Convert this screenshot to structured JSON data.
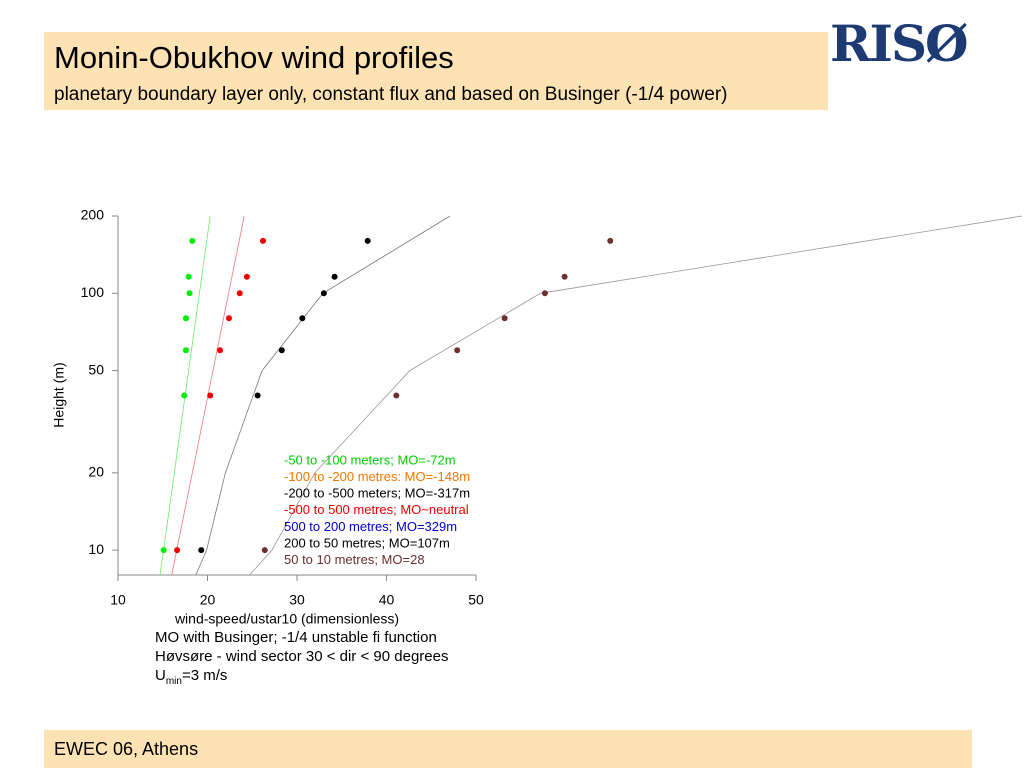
{
  "header": {
    "title": "Monin-Obukhov wind profiles",
    "subtitle": "planetary boundary layer only, constant flux and based on Businger (-1/4 power)",
    "logo": "RISØ"
  },
  "chart_data": {
    "type": "scatter",
    "xlabel": "wind-speed/ustar10  (dimensionless)",
    "ylabel": "Height (m)",
    "xlim": [
      10,
      50
    ],
    "xticks": [
      10,
      20,
      30,
      40,
      50
    ],
    "ylim": [
      8,
      200
    ],
    "yticks": [
      10,
      20,
      50,
      100,
      200
    ],
    "ylog": true,
    "heights": [
      160,
      116,
      100,
      80,
      60,
      40,
      10
    ],
    "series": [
      {
        "color": "#00ee00",
        "values": [
          18.3,
          17.9,
          18.0,
          17.6,
          17.6,
          17.4,
          15.1
        ]
      },
      {
        "color": "#ee0000",
        "values": [
          26.2,
          24.4,
          23.6,
          22.4,
          21.4,
          20.3,
          16.6
        ]
      },
      {
        "color": "#000000",
        "values": [
          37.9,
          34.2,
          33.0,
          30.6,
          28.3,
          25.6,
          19.3
        ]
      },
      {
        "color": "#6b3030",
        "values": [
          65.0,
          59.9,
          57.7,
          53.2,
          47.9,
          41.1,
          26.4
        ]
      }
    ],
    "fits": [
      {
        "color": "#66ee66",
        "heights": [
          8,
          200
        ],
        "values": [
          14.7,
          20.3
        ]
      },
      {
        "color": "#ee7777",
        "heights": [
          8,
          200
        ],
        "values": [
          16.0,
          24.1
        ]
      },
      {
        "color": "#777777",
        "heights": [
          8,
          10,
          20,
          50,
          100,
          200
        ],
        "values": [
          18.7,
          19.9,
          22.0,
          26.1,
          32.9,
          47.1
        ]
      },
      {
        "color": "#999999",
        "heights": [
          8,
          10,
          20,
          50,
          100,
          200
        ],
        "values": [
          24.7,
          27.2,
          32.0,
          42.6,
          57.2,
          111
        ]
      }
    ],
    "legend": [
      {
        "text": "-50 to -100 meters; MO=-72m",
        "color": "#00cc00"
      },
      {
        "text": "-100 to -200 metres: MO=-148m",
        "color": "#ee7700"
      },
      {
        "text": "-200 to -500 meters; MO=-317m",
        "color": "#000000"
      },
      {
        "text": "-500 to 500 metres; MO~neutral",
        "color": "#ee0000"
      },
      {
        "text": "500 to 200 metres; MO=329m",
        "color": "#0000cc"
      },
      {
        "text": "200 to 50 metres; MO=107m",
        "color": "#000000"
      },
      {
        "text": "50 to 10 metres; MO=28",
        "color": "#6b3030"
      }
    ]
  },
  "notes": {
    "line1": "MO with Businger; -1/4 unstable fi function",
    "line2": "Høvsøre - wind sector 30 < dir < 90 degrees",
    "u": "U",
    "sub": "min",
    "rest": "=3 m/s"
  },
  "footer": "EWEC 06, Athens"
}
